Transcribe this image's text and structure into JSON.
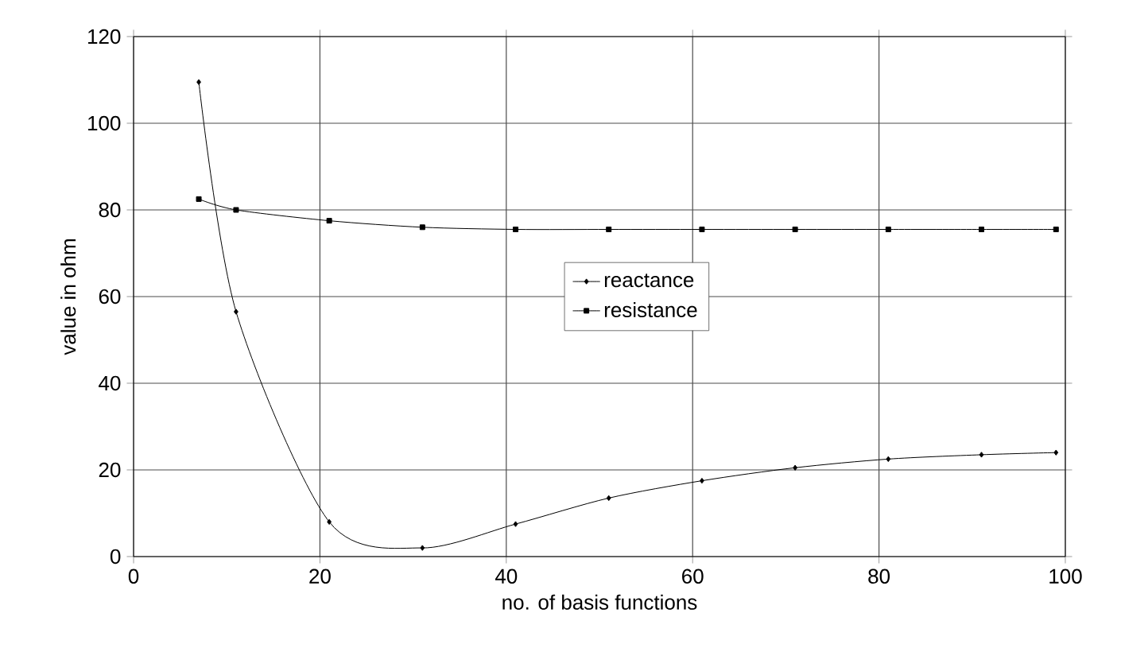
{
  "chart_data": {
    "type": "line",
    "xlabel": "no. of basis functions",
    "ylabel": "value in ohm",
    "x": [
      7,
      11,
      21,
      31,
      41,
      51,
      61,
      71,
      81,
      91,
      99
    ],
    "series": [
      {
        "name": "reactance",
        "color": "#000000",
        "marker": "diamond",
        "values": [
          109.5,
          56.5,
          8,
          2,
          7.5,
          13.5,
          17.5,
          20.5,
          22.5,
          23.5,
          24
        ]
      },
      {
        "name": "resistance",
        "color": "#000000",
        "marker": "square",
        "values": [
          82.5,
          80,
          77.5,
          76,
          75.5,
          75.5,
          75.5,
          75.5,
          75.5,
          75.5,
          75.5
        ]
      }
    ],
    "xlim": [
      0,
      100
    ],
    "xticks": [
      0,
      20,
      40,
      60,
      80,
      100
    ],
    "ylim": [
      0,
      120
    ],
    "yticks": [
      0,
      20,
      40,
      60,
      80,
      100,
      120
    ],
    "grid": true,
    "legend": "center",
    "line_style": "solid"
  }
}
